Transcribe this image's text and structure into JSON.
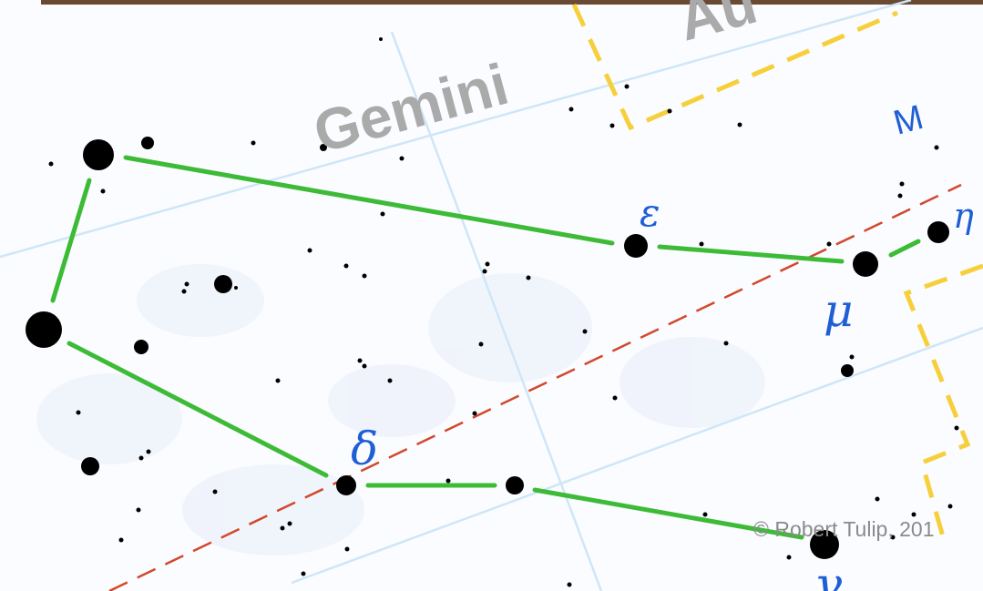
{
  "map": {
    "constellation_labels": [
      "Gemini",
      "Au",
      "M"
    ],
    "star_labels": [
      "ε",
      "μ",
      "δ",
      "γ",
      "η"
    ],
    "credit": "© Robert Tulip, 201"
  }
}
